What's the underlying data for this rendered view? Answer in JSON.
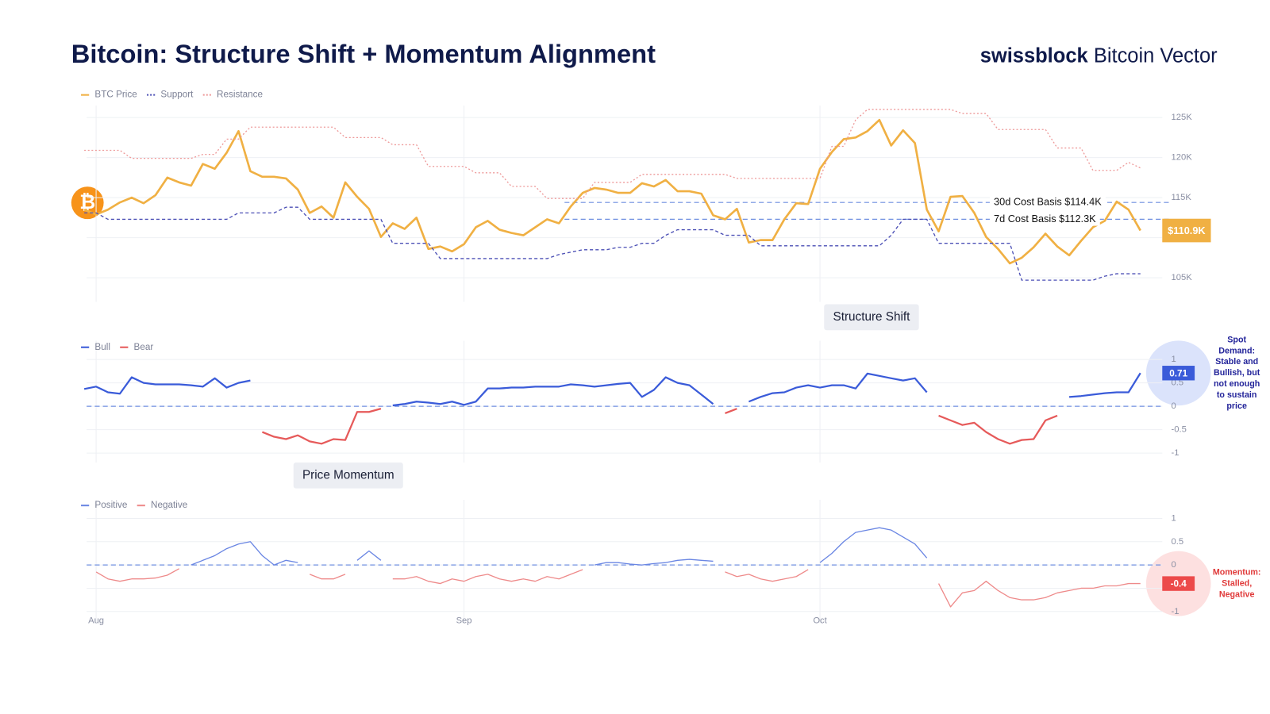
{
  "header": {
    "title": "Bitcoin: Structure Shift + Momentum Alignment",
    "brand": "swissblock",
    "brand_product": "Bitcoin Vector",
    "icon_label": "₿"
  },
  "chart_data": [
    {
      "type": "line",
      "grid": true,
      "ylim": [
        102,
        126.5
      ],
      "yticks": [
        {
          "value": 105,
          "label": "105K"
        },
        {
          "value": 110,
          "label": "110K"
        },
        {
          "value": 115,
          "label": "115K"
        },
        {
          "value": 120,
          "label": "120K"
        },
        {
          "value": 125,
          "label": "125K"
        }
      ],
      "hlines": [
        {
          "value": 114.4,
          "label": "30d Cost Basis $114.4K"
        },
        {
          "value": 112.3,
          "label": "7d Cost Basis $112.3K"
        }
      ],
      "series": [
        {
          "name": "BTC Price",
          "color": "#f0b043",
          "style": "solid",
          "width": 2.6,
          "last_label": "$110.9K",
          "values": [
            113.5,
            112.9,
            113.5,
            114.4,
            115.0,
            114.3,
            115.3,
            117.5,
            116.9,
            116.5,
            119.2,
            118.6,
            120.6,
            123.3,
            118.3,
            117.6,
            117.6,
            117.4,
            116.0,
            113.1,
            113.9,
            112.5,
            116.9,
            115.1,
            113.6,
            110.1,
            111.8,
            111.1,
            112.5,
            108.6,
            108.9,
            108.3,
            109.2,
            111.3,
            112.1,
            111.0,
            110.6,
            110.3,
            111.3,
            112.3,
            111.8,
            113.9,
            115.6,
            116.2,
            116.0,
            115.6,
            115.6,
            116.8,
            116.4,
            117.2,
            115.8,
            115.8,
            115.5,
            112.8,
            112.3,
            113.6,
            109.4,
            109.7,
            109.7,
            112.3,
            114.3,
            114.2,
            118.6,
            120.7,
            122.3,
            122.5,
            123.3,
            124.7,
            121.5,
            123.4,
            121.8,
            113.5,
            110.8,
            115.1,
            115.2,
            113.1,
            110.1,
            108.6,
            106.8,
            107.5,
            108.8,
            110.5,
            108.9,
            107.8,
            109.6,
            111.3,
            112.1,
            114.5,
            113.5,
            110.9
          ]
        },
        {
          "name": "Support",
          "color": "#4b4fb5",
          "style": "dashed",
          "width": 1.3,
          "values": [
            113.1,
            113.1,
            112.3,
            112.3,
            112.3,
            112.3,
            112.3,
            112.3,
            112.3,
            112.3,
            112.3,
            112.3,
            112.3,
            113.1,
            113.1,
            113.1,
            113.1,
            113.8,
            113.8,
            112.3,
            112.3,
            112.3,
            112.3,
            112.3,
            112.3,
            112.3,
            109.3,
            109.3,
            109.3,
            109.3,
            107.4,
            107.4,
            107.4,
            107.4,
            107.4,
            107.4,
            107.4,
            107.4,
            107.4,
            107.4,
            107.9,
            108.2,
            108.5,
            108.5,
            108.5,
            108.8,
            108.8,
            109.3,
            109.3,
            110.3,
            111.0,
            111.0,
            111.0,
            111.0,
            110.3,
            110.3,
            110.3,
            109.0,
            109.0,
            109.0,
            109.0,
            109.0,
            109.0,
            109.0,
            109.0,
            109.0,
            109.0,
            109.0,
            110.3,
            112.3,
            112.3,
            112.3,
            109.3,
            109.3,
            109.3,
            109.3,
            109.3,
            109.3,
            109.3,
            104.7,
            104.7,
            104.7,
            104.7,
            104.7,
            104.7,
            104.7,
            105.2,
            105.5,
            105.5,
            105.5
          ]
        },
        {
          "name": "Resistance",
          "color": "#ee9a9a",
          "style": "dotted",
          "width": 1.3,
          "values": [
            120.9,
            120.9,
            120.9,
            120.9,
            119.9,
            119.9,
            119.9,
            119.9,
            119.9,
            119.9,
            120.4,
            120.4,
            122.3,
            122.3,
            123.8,
            123.8,
            123.8,
            123.8,
            123.8,
            123.8,
            123.8,
            123.8,
            122.5,
            122.5,
            122.5,
            122.5,
            121.6,
            121.6,
            121.6,
            118.9,
            118.9,
            118.9,
            118.9,
            118.1,
            118.1,
            118.1,
            116.4,
            116.4,
            116.4,
            114.9,
            114.9,
            114.9,
            114.9,
            116.9,
            116.9,
            116.9,
            116.9,
            117.9,
            117.9,
            117.9,
            117.9,
            117.9,
            117.9,
            117.9,
            117.9,
            117.4,
            117.4,
            117.4,
            117.4,
            117.4,
            117.4,
            117.4,
            117.4,
            121.4,
            121.4,
            124.7,
            126.0,
            126.0,
            126.0,
            126.0,
            126.0,
            126.0,
            126.0,
            126.0,
            125.5,
            125.5,
            125.5,
            123.5,
            123.5,
            123.5,
            123.5,
            123.5,
            121.2,
            121.2,
            121.2,
            118.4,
            118.4,
            118.4,
            119.4,
            118.7
          ]
        }
      ]
    },
    {
      "type": "line",
      "grid": true,
      "title": "Structure Shift",
      "ylim": [
        -1.2,
        1.4
      ],
      "yticks": [
        -1,
        -0.5,
        0,
        0.5,
        1
      ],
      "hlines": [
        {
          "value": 0
        }
      ],
      "annotation": [
        "Spot",
        "Demand:",
        "Stable and",
        "Bullish, but",
        "not enough",
        "to sustain",
        "price"
      ],
      "annotation_color": "#23249a",
      "halo": "#dbe3fb",
      "series": [
        {
          "name": "Bull",
          "color": "#3a5bd9",
          "style": "solid",
          "width": 2.2,
          "last_label": "0.71",
          "values": [
            0.37,
            0.42,
            0.3,
            0.27,
            0.62,
            0.5,
            0.47,
            0.47,
            0.47,
            0.45,
            0.42,
            0.6,
            0.4,
            0.5,
            0.55,
            null,
            null,
            null,
            null,
            null,
            null,
            null,
            null,
            null,
            null,
            null,
            0.02,
            0.05,
            0.1,
            0.08,
            0.05,
            0.1,
            0.03,
            0.1,
            0.38,
            0.38,
            0.4,
            0.4,
            0.42,
            0.42,
            0.42,
            0.47,
            0.45,
            0.42,
            0.45,
            0.48,
            0.5,
            0.2,
            0.35,
            0.62,
            0.5,
            0.45,
            0.25,
            0.05,
            null,
            null,
            0.1,
            0.2,
            0.28,
            0.3,
            0.4,
            0.45,
            0.4,
            0.45,
            0.45,
            0.38,
            0.7,
            0.65,
            0.6,
            0.55,
            0.6,
            0.3,
            null,
            null,
            null,
            null,
            null,
            null,
            null,
            null,
            null,
            null,
            null,
            0.2,
            0.22,
            0.25,
            0.28,
            0.3,
            0.3,
            0.71
          ]
        },
        {
          "name": "Bear",
          "color": "#e65a5a",
          "style": "solid",
          "width": 2.2,
          "values": [
            null,
            null,
            null,
            null,
            null,
            null,
            null,
            null,
            null,
            null,
            null,
            null,
            null,
            null,
            null,
            -0.55,
            -0.65,
            -0.7,
            -0.62,
            -0.75,
            -0.8,
            -0.7,
            -0.72,
            -0.12,
            -0.12,
            -0.05,
            null,
            null,
            null,
            null,
            null,
            null,
            null,
            null,
            null,
            null,
            null,
            null,
            null,
            null,
            null,
            null,
            null,
            null,
            null,
            null,
            null,
            null,
            null,
            null,
            null,
            null,
            null,
            null,
            -0.15,
            -0.05,
            null,
            null,
            null,
            null,
            null,
            null,
            null,
            null,
            null,
            null,
            null,
            null,
            null,
            null,
            null,
            null,
            -0.2,
            -0.3,
            -0.4,
            -0.35,
            -0.55,
            -0.7,
            -0.8,
            -0.72,
            -0.7,
            -0.3,
            -0.2,
            null,
            null,
            null,
            null,
            null,
            null,
            null
          ]
        }
      ]
    },
    {
      "type": "line",
      "grid": true,
      "title": "Price Momentum",
      "ylim": [
        -1.25,
        1.4
      ],
      "yticks": [
        -1,
        -0.5,
        0,
        0.5,
        1
      ],
      "hlines": [
        {
          "value": 0
        }
      ],
      "annotation": [
        "Momentum:",
        "Stalled,",
        "Negative"
      ],
      "annotation_color": "#e03a3a",
      "halo": "#fde0e0",
      "categories": [
        null,
        "Aug",
        null,
        null,
        null,
        null,
        null,
        null,
        null,
        null,
        null,
        null,
        null,
        null,
        null,
        null,
        null,
        null,
        null,
        null,
        null,
        null,
        null,
        null,
        null,
        null,
        null,
        null,
        null,
        null,
        null,
        null,
        "Sep",
        null,
        null,
        null,
        null,
        null,
        null,
        null,
        null,
        null,
        null,
        null,
        null,
        null,
        null,
        null,
        null,
        null,
        null,
        null,
        null,
        null,
        null,
        null,
        null,
        null,
        null,
        null,
        null,
        null,
        "Oct",
        null,
        null,
        null,
        null,
        null,
        null,
        null,
        null,
        null,
        null,
        null,
        null,
        null,
        null,
        null,
        null,
        null,
        null,
        null,
        null,
        null,
        null,
        null,
        null,
        null,
        null,
        null
      ],
      "series": [
        {
          "name": "Positive",
          "color": "#6a86e3",
          "style": "solid",
          "width": 1.3,
          "values": [
            0,
            null,
            null,
            null,
            null,
            null,
            null,
            null,
            null,
            0,
            0.1,
            0.2,
            0.35,
            0.45,
            0.5,
            0.2,
            0,
            0.1,
            0.05,
            null,
            null,
            null,
            null,
            0.1,
            0.3,
            0.1,
            null,
            null,
            null,
            null,
            null,
            null,
            null,
            null,
            null,
            null,
            null,
            null,
            null,
            null,
            null,
            null,
            null,
            0,
            0.05,
            0.05,
            0.02,
            0,
            0.03,
            0.05,
            0.1,
            0.12,
            0.1,
            0.08,
            null,
            null,
            null,
            null,
            null,
            null,
            null,
            null,
            0.05,
            0.25,
            0.5,
            0.7,
            0.75,
            0.8,
            0.75,
            0.6,
            0.45,
            0.15,
            null,
            null,
            null,
            null,
            null,
            null,
            null,
            null,
            null,
            null,
            null,
            null,
            null,
            null,
            null,
            null,
            null,
            null
          ]
        },
        {
          "name": "Negative",
          "color": "#ee8a8a",
          "style": "solid",
          "width": 1.3,
          "last_label": "-0.4",
          "values": [
            null,
            -0.15,
            -0.3,
            -0.35,
            -0.3,
            -0.3,
            -0.28,
            -0.22,
            -0.08,
            null,
            null,
            null,
            null,
            null,
            null,
            null,
            null,
            null,
            null,
            -0.2,
            -0.3,
            -0.3,
            -0.2,
            null,
            null,
            null,
            -0.3,
            -0.3,
            -0.25,
            -0.35,
            -0.4,
            -0.3,
            -0.35,
            -0.25,
            -0.2,
            -0.3,
            -0.35,
            -0.3,
            -0.35,
            -0.25,
            -0.3,
            -0.2,
            -0.1,
            null,
            null,
            null,
            null,
            null,
            null,
            null,
            null,
            null,
            null,
            null,
            -0.15,
            -0.25,
            -0.2,
            -0.3,
            -0.35,
            -0.3,
            -0.25,
            -0.1,
            null,
            null,
            null,
            null,
            null,
            null,
            null,
            null,
            null,
            null,
            -0.4,
            -0.9,
            -0.6,
            -0.55,
            -0.35,
            -0.55,
            -0.7,
            -0.75,
            -0.75,
            -0.7,
            -0.6,
            -0.55,
            -0.5,
            -0.5,
            -0.45,
            -0.45,
            -0.4,
            -0.4
          ]
        }
      ]
    }
  ]
}
